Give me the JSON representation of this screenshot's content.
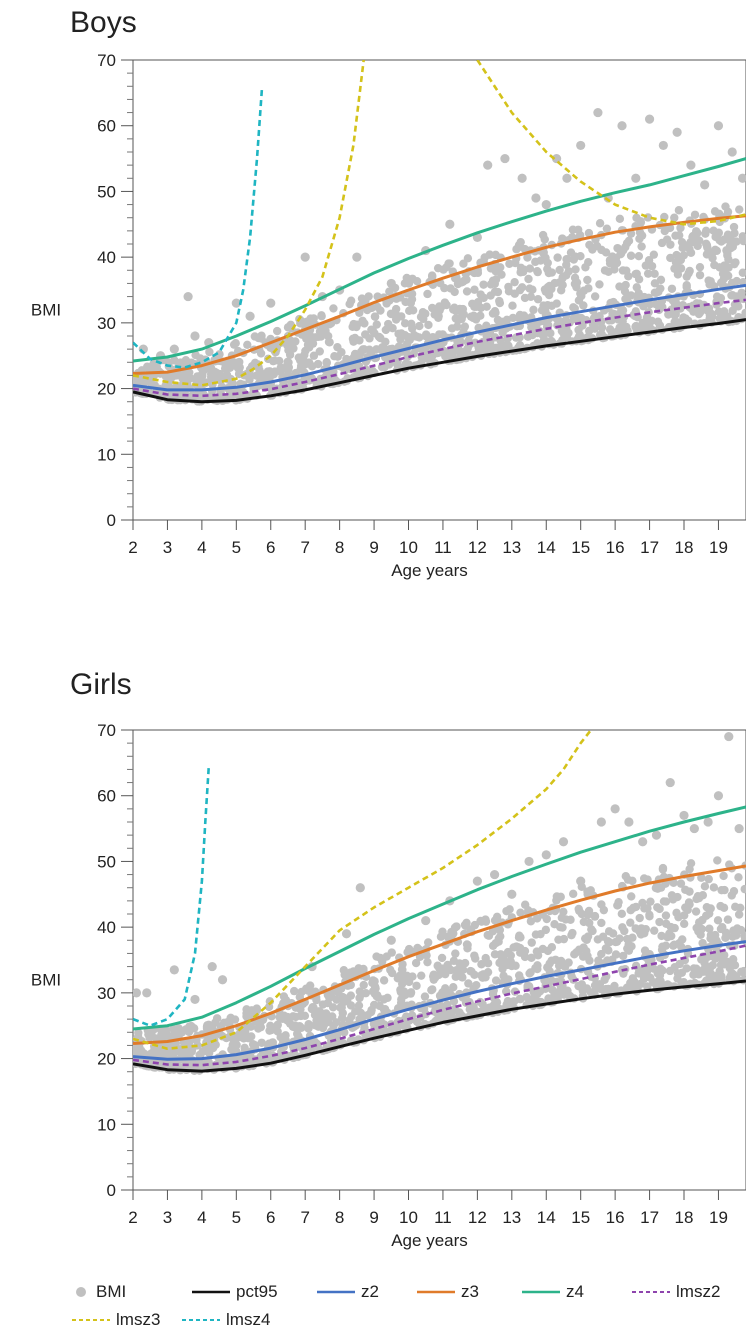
{
  "panels": [
    {
      "title": "Boys"
    },
    {
      "title": "Girls"
    }
  ],
  "legend": [
    {
      "label": "BMI",
      "marker": "dot",
      "color": "#c0c0c0"
    },
    {
      "label": "pct95",
      "marker": "solid",
      "color": "#111111"
    },
    {
      "label": "z2",
      "marker": "solid",
      "color": "#4472c4"
    },
    {
      "label": "z3",
      "marker": "solid",
      "color": "#e07b2a"
    },
    {
      "label": "z4",
      "marker": "solid",
      "color": "#2db38a"
    },
    {
      "label": "lmsz2",
      "marker": "dashed",
      "color": "#8e44ad"
    },
    {
      "label": "lmsz3",
      "marker": "dashed",
      "color": "#d4c21a"
    },
    {
      "label": "lmsz4",
      "marker": "dashed",
      "color": "#1fb5c2"
    }
  ],
  "chart_data": [
    {
      "type": "scatter",
      "title": "Boys",
      "xlabel": "Age years",
      "ylabel": "BMI",
      "xlim": [
        2,
        19.8
      ],
      "ylim": [
        0,
        70
      ],
      "xticks": [
        2,
        3,
        4,
        5,
        6,
        7,
        8,
        9,
        10,
        11,
        12,
        13,
        14,
        15,
        16,
        17,
        18,
        19
      ],
      "yticks": [
        0,
        10,
        20,
        30,
        40,
        50,
        60,
        70
      ],
      "scatter_series": {
        "name": "BMI",
        "color": "#c0c0c0",
        "points": [
          [
            2.3,
            26
          ],
          [
            2.8,
            25
          ],
          [
            3.2,
            26
          ],
          [
            3.6,
            34
          ],
          [
            3.8,
            28
          ],
          [
            4.2,
            27
          ],
          [
            5,
            33
          ],
          [
            5.4,
            31
          ],
          [
            6,
            33
          ],
          [
            7,
            40
          ],
          [
            7.5,
            34
          ],
          [
            8,
            35
          ],
          [
            8.5,
            40
          ],
          [
            9.5,
            36
          ],
          [
            10.5,
            41
          ],
          [
            11.2,
            45
          ],
          [
            12,
            43
          ],
          [
            12.3,
            54
          ],
          [
            12.8,
            55
          ],
          [
            13.3,
            52
          ],
          [
            13.7,
            49
          ],
          [
            14,
            48
          ],
          [
            14.3,
            55
          ],
          [
            14.6,
            52
          ],
          [
            15,
            57
          ],
          [
            15.5,
            62
          ],
          [
            15.8,
            49
          ],
          [
            16.2,
            60
          ],
          [
            16.6,
            52
          ],
          [
            17,
            61
          ],
          [
            17.4,
            57
          ],
          [
            17.8,
            59
          ],
          [
            18.2,
            54
          ],
          [
            18.6,
            51
          ],
          [
            19,
            60
          ],
          [
            19.4,
            56
          ],
          [
            19.7,
            52
          ]
        ]
      },
      "line_series": [
        {
          "name": "pct95",
          "color": "#111111",
          "dash": false,
          "x": [
            2,
            3,
            4,
            5,
            6,
            7,
            8,
            9,
            10,
            11,
            12,
            13,
            14,
            15,
            16,
            17,
            18,
            19,
            19.8
          ],
          "y": [
            19.5,
            18.3,
            18,
            18.2,
            18.9,
            19.8,
            20.9,
            22,
            23.1,
            24,
            24.9,
            25.7,
            26.5,
            27.2,
            27.9,
            28.6,
            29.3,
            29.9,
            30.5
          ]
        },
        {
          "name": "z2",
          "color": "#4472c4",
          "dash": false,
          "x": [
            2,
            3,
            4,
            5,
            6,
            7,
            8,
            9,
            10,
            11,
            12,
            13,
            14,
            15,
            16,
            17,
            18,
            19,
            19.8
          ],
          "y": [
            20.5,
            19.8,
            19.8,
            20.2,
            21,
            22.1,
            23.4,
            24.8,
            26.1,
            27.4,
            28.6,
            29.7,
            30.8,
            31.7,
            32.6,
            33.5,
            34.3,
            35.1,
            35.7
          ]
        },
        {
          "name": "z3",
          "color": "#e07b2a",
          "dash": false,
          "x": [
            2,
            3,
            4,
            5,
            6,
            7,
            8,
            9,
            10,
            11,
            12,
            13,
            14,
            15,
            16,
            17,
            18,
            19,
            19.8
          ],
          "y": [
            22.3,
            22.5,
            23.5,
            25,
            27,
            29,
            31,
            33.1,
            35,
            36.8,
            38.5,
            40,
            41.5,
            42.7,
            43.8,
            44.6,
            45.3,
            45.9,
            46.3
          ]
        },
        {
          "name": "z4",
          "color": "#2db38a",
          "dash": false,
          "x": [
            2,
            3,
            4,
            5,
            6,
            7,
            8,
            9,
            10,
            11,
            12,
            13,
            14,
            15,
            16,
            17,
            18,
            19,
            19.8
          ],
          "y": [
            24.2,
            24.8,
            26,
            28,
            30.2,
            32.6,
            35.1,
            37.6,
            39.8,
            41.8,
            43.7,
            45.4,
            47,
            48.5,
            49.8,
            51,
            52.4,
            53.8,
            55
          ]
        },
        {
          "name": "lmsz2",
          "color": "#8e44ad",
          "dash": true,
          "x": [
            2,
            3,
            4,
            5,
            6,
            7,
            8,
            9,
            10,
            11,
            12,
            13,
            14,
            15,
            16,
            17,
            18,
            19,
            19.8
          ],
          "y": [
            20,
            19.1,
            18.9,
            19.2,
            19.9,
            21,
            22.2,
            23.5,
            24.8,
            26,
            27.1,
            28.1,
            29.1,
            30,
            30.8,
            31.6,
            32.3,
            33,
            33.5
          ]
        },
        {
          "name": "lmsz3",
          "color": "#d4c21a",
          "dash": true,
          "x": [
            2,
            3,
            4,
            5,
            5.5,
            6,
            6.5,
            7,
            7.5,
            8,
            8.4,
            8.7
          ],
          "y": [
            22,
            21,
            20.5,
            21.5,
            23,
            25,
            28,
            32,
            37,
            46,
            57,
            70
          ]
        },
        {
          "name": "lmsz3",
          "color": "#d4c21a",
          "dash": true,
          "x": [
            12,
            13,
            14,
            15,
            16,
            17,
            18,
            19,
            19.8
          ],
          "y": [
            70,
            62,
            56,
            51.5,
            48,
            46,
            45,
            45.5,
            46.5
          ]
        },
        {
          "name": "lmsz4",
          "color": "#1fb5c2",
          "dash": true,
          "x": [
            2,
            2.5,
            3,
            3.5,
            4,
            4.5,
            5,
            5.2,
            5.4,
            5.6,
            5.75
          ],
          "y": [
            27,
            24.5,
            23.5,
            23.2,
            24,
            25.5,
            30,
            35,
            43,
            55,
            66
          ]
        }
      ]
    },
    {
      "type": "scatter",
      "title": "Girls",
      "xlabel": "Age years",
      "ylabel": "BMI",
      "xlim": [
        2,
        19.8
      ],
      "ylim": [
        0,
        70
      ],
      "xticks": [
        2,
        3,
        4,
        5,
        6,
        7,
        8,
        9,
        10,
        11,
        12,
        13,
        14,
        15,
        16,
        17,
        18,
        19
      ],
      "yticks": [
        0,
        10,
        20,
        30,
        40,
        50,
        60,
        70
      ],
      "scatter_series": {
        "name": "BMI",
        "color": "#c0c0c0",
        "points": [
          [
            2.1,
            30
          ],
          [
            2.4,
            30
          ],
          [
            3.2,
            33.5
          ],
          [
            3.8,
            29
          ],
          [
            4.3,
            34
          ],
          [
            4.6,
            32
          ],
          [
            7.2,
            34
          ],
          [
            8.2,
            39
          ],
          [
            8.6,
            46
          ],
          [
            9.5,
            38
          ],
          [
            10.5,
            41
          ],
          [
            11.2,
            44
          ],
          [
            12,
            47
          ],
          [
            12.5,
            48
          ],
          [
            13,
            45
          ],
          [
            13.5,
            50
          ],
          [
            14,
            51
          ],
          [
            14.5,
            53
          ],
          [
            15,
            47
          ],
          [
            15.6,
            56
          ],
          [
            16,
            58
          ],
          [
            16.4,
            56
          ],
          [
            16.8,
            53
          ],
          [
            17.2,
            54
          ],
          [
            17.6,
            62
          ],
          [
            18,
            57
          ],
          [
            18.3,
            55
          ],
          [
            18.7,
            56
          ],
          [
            19,
            60
          ],
          [
            19.3,
            69
          ],
          [
            19.6,
            55
          ]
        ]
      },
      "line_series": [
        {
          "name": "pct95",
          "color": "#111111",
          "dash": false,
          "x": [
            2,
            3,
            4,
            5,
            6,
            7,
            8,
            9,
            10,
            11,
            12,
            13,
            14,
            15,
            16,
            17,
            18,
            19,
            19.8
          ],
          "y": [
            19.2,
            18.3,
            18.1,
            18.5,
            19.3,
            20.5,
            21.8,
            23.1,
            24.3,
            25.5,
            26.5,
            27.5,
            28.3,
            29.1,
            29.8,
            30.4,
            30.9,
            31.4,
            31.8
          ]
        },
        {
          "name": "z2",
          "color": "#4472c4",
          "dash": false,
          "x": [
            2,
            3,
            4,
            5,
            6,
            7,
            8,
            9,
            10,
            11,
            12,
            13,
            14,
            15,
            16,
            17,
            18,
            19,
            19.8
          ],
          "y": [
            20.3,
            19.9,
            20,
            20.6,
            21.6,
            22.9,
            24.4,
            26,
            27.5,
            28.9,
            30.2,
            31.4,
            32.5,
            33.5,
            34.5,
            35.5,
            36.4,
            37.2,
            37.8
          ]
        },
        {
          "name": "z3",
          "color": "#e07b2a",
          "dash": false,
          "x": [
            2,
            3,
            4,
            5,
            6,
            7,
            8,
            9,
            10,
            11,
            12,
            13,
            14,
            15,
            16,
            17,
            18,
            19,
            19.8
          ],
          "y": [
            22.3,
            22.6,
            23.5,
            25,
            26.9,
            29,
            31.2,
            33.4,
            35.5,
            37.4,
            39.3,
            41,
            42.6,
            44.1,
            45.5,
            46.7,
            47.7,
            48.6,
            49.3
          ]
        },
        {
          "name": "z4",
          "color": "#2db38a",
          "dash": false,
          "x": [
            2,
            3,
            4,
            5,
            6,
            7,
            8,
            9,
            10,
            11,
            12,
            13,
            14,
            15,
            16,
            17,
            18,
            19,
            19.8
          ],
          "y": [
            24.5,
            25,
            26.3,
            28.5,
            31,
            33.7,
            36.3,
            38.9,
            41.3,
            43.5,
            45.7,
            47.7,
            49.6,
            51.4,
            53,
            54.6,
            56,
            57.3,
            58.3
          ]
        },
        {
          "name": "lmsz2",
          "color": "#8e44ad",
          "dash": true,
          "x": [
            2,
            3,
            4,
            5,
            6,
            7,
            8,
            9,
            10,
            11,
            12,
            13,
            14,
            15,
            16,
            17,
            18,
            19,
            19.8
          ],
          "y": [
            19.8,
            19.1,
            19,
            19.5,
            20.4,
            21.6,
            23,
            24.5,
            26,
            27.4,
            28.7,
            29.9,
            31,
            32.1,
            33.2,
            34.3,
            35.3,
            36.3,
            37.2
          ]
        },
        {
          "name": "lmsz3",
          "color": "#d4c21a",
          "dash": true,
          "x": [
            2,
            3,
            4,
            5,
            6,
            7,
            8,
            9,
            10,
            11,
            12,
            13,
            14,
            14.5,
            15,
            15.3
          ],
          "y": [
            23,
            21.5,
            22,
            24,
            28.5,
            34,
            39.5,
            43,
            46,
            49,
            52.5,
            56.5,
            61,
            64,
            68,
            70
          ]
        },
        {
          "name": "lmsz4",
          "color": "#1fb5c2",
          "dash": true,
          "x": [
            2,
            2.5,
            3,
            3.5,
            3.8,
            4,
            4.1,
            4.2
          ],
          "y": [
            26,
            25,
            26,
            29,
            36,
            47,
            56,
            64.5
          ]
        }
      ]
    }
  ]
}
